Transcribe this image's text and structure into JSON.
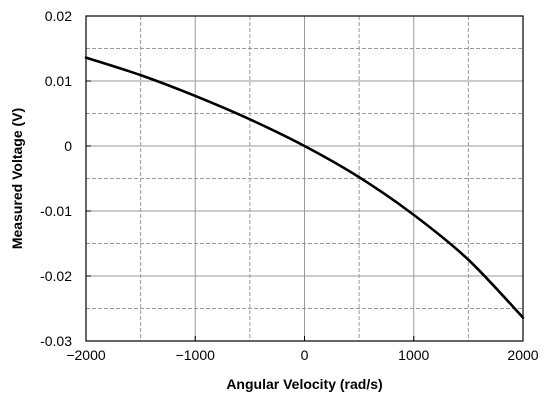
{
  "chart_data": {
    "type": "line",
    "xlabel": "Angular Velocity (rad/s)",
    "ylabel": "Measured Voltage (V)",
    "xlim": [
      -2000,
      2000
    ],
    "ylim": [
      -0.03,
      0.02
    ],
    "x_ticks": [
      -2000,
      -1000,
      0,
      1000,
      2000
    ],
    "x_tick_labels": [
      "−2000",
      "−1000",
      "0",
      "1000",
      "2000"
    ],
    "x_minor_grid": [
      -1500,
      -500,
      500,
      1500
    ],
    "y_ticks": [
      0.02,
      0.01,
      0,
      -0.01,
      -0.02,
      -0.03
    ],
    "y_tick_labels": [
      "0.02",
      "0.01",
      "0",
      "-0.01",
      "-0.02",
      "-0.03"
    ],
    "y_minor_grid": [
      0.015,
      0.005,
      -0.005,
      -0.015,
      -0.025
    ],
    "grid": true,
    "series": [
      {
        "color": "#000000",
        "x": [
          -2000,
          -1500,
          -1000,
          -500,
          0,
          500,
          1000,
          1500,
          2000
        ],
        "y": [
          0.0136,
          0.0109,
          0.0077,
          0.0041,
          0.0,
          -0.0048,
          -0.0106,
          -0.0175,
          -0.0264
        ]
      }
    ]
  }
}
